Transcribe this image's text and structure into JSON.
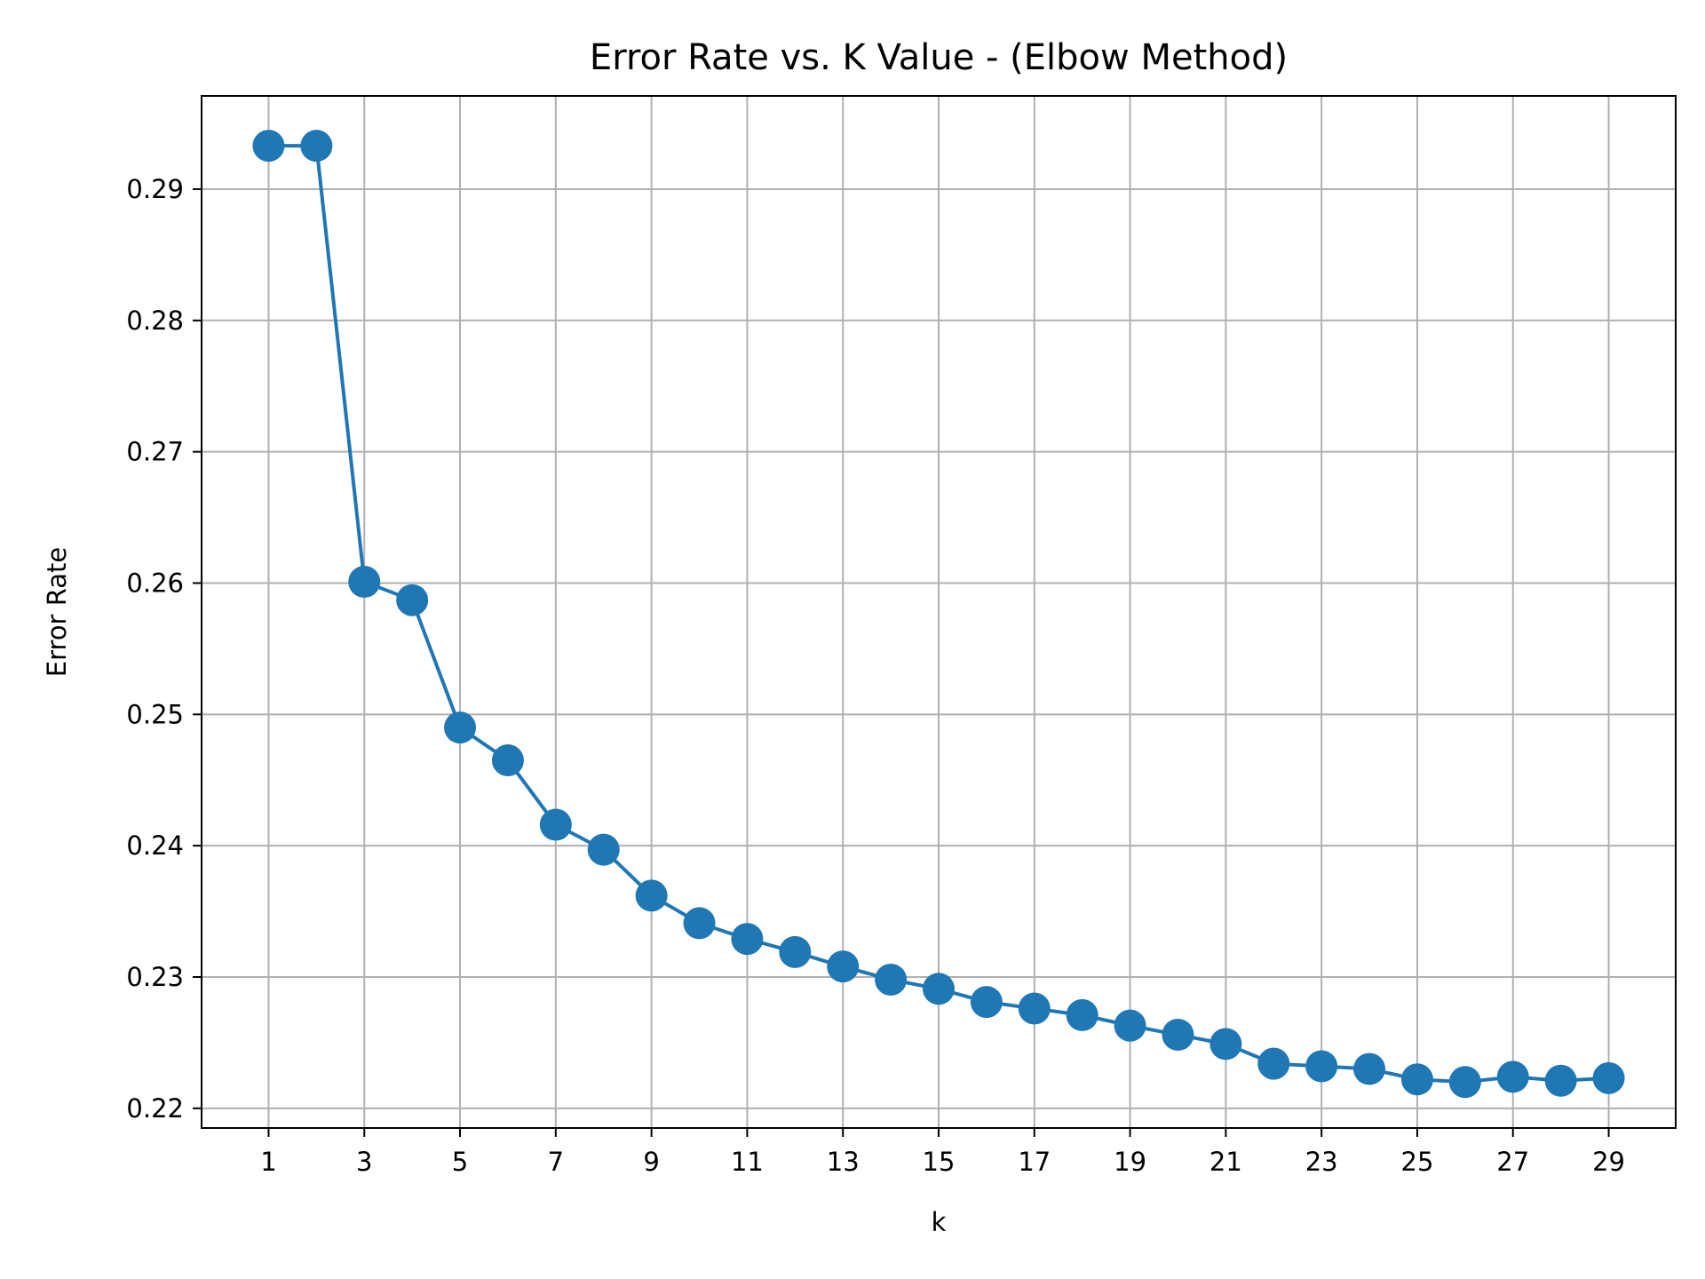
{
  "chart_data": {
    "type": "line",
    "title": "Error Rate vs. K Value - (Elbow Method)",
    "xlabel": "k",
    "ylabel": "Error Rate",
    "x": [
      1,
      2,
      3,
      4,
      5,
      6,
      7,
      8,
      9,
      10,
      11,
      12,
      13,
      14,
      15,
      16,
      17,
      18,
      19,
      20,
      21,
      22,
      23,
      24,
      25,
      26,
      27,
      28,
      29
    ],
    "series": [
      {
        "values": [
          0.2933,
          0.2933,
          0.2601,
          0.2587,
          0.249,
          0.2465,
          0.2416,
          0.2397,
          0.2362,
          0.2341,
          0.2329,
          0.2319,
          0.2308,
          0.2298,
          0.2291,
          0.2281,
          0.2276,
          0.2271,
          0.2263,
          0.2256,
          0.2249,
          0.2234,
          0.2232,
          0.223,
          0.2222,
          0.222,
          0.2224,
          0.2221,
          0.2223
        ],
        "color": "#1f77b4",
        "marker": "circle"
      }
    ],
    "xticks": [
      "1",
      "3",
      "5",
      "7",
      "9",
      "11",
      "13",
      "15",
      "17",
      "19",
      "21",
      "23",
      "25",
      "27",
      "29"
    ],
    "yticks": [
      "0.22",
      "0.23",
      "0.24",
      "0.25",
      "0.26",
      "0.27",
      "0.28",
      "0.29"
    ],
    "xlim": [
      -0.4,
      30.4
    ],
    "ylim": [
      0.2185,
      0.2971
    ],
    "grid": true
  }
}
